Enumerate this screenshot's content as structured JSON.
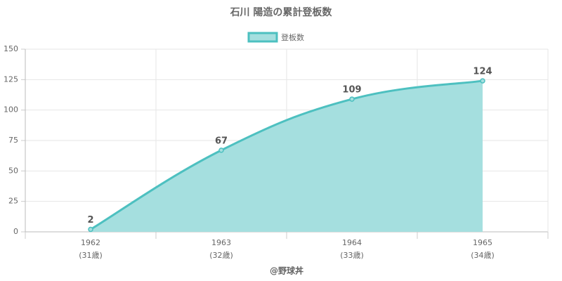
{
  "chart_data": {
    "type": "area",
    "title": "石川 陽造の累計登板数",
    "categories": [
      "1962",
      "1963",
      "1964",
      "1965"
    ],
    "category_sublabels": [
      "(31歳)",
      "(32歳)",
      "(33歳)",
      "(34歳)"
    ],
    "series": [
      {
        "name": "登板数",
        "color": "#4dc0c0",
        "fill": "#a5dfdf",
        "values": [
          2,
          67,
          109,
          124
        ]
      }
    ],
    "ylim": [
      0,
      150
    ],
    "yticks": [
      0,
      25,
      50,
      75,
      100,
      125,
      150
    ],
    "x_label": "@野球丼",
    "grid": true,
    "legend": "top"
  }
}
